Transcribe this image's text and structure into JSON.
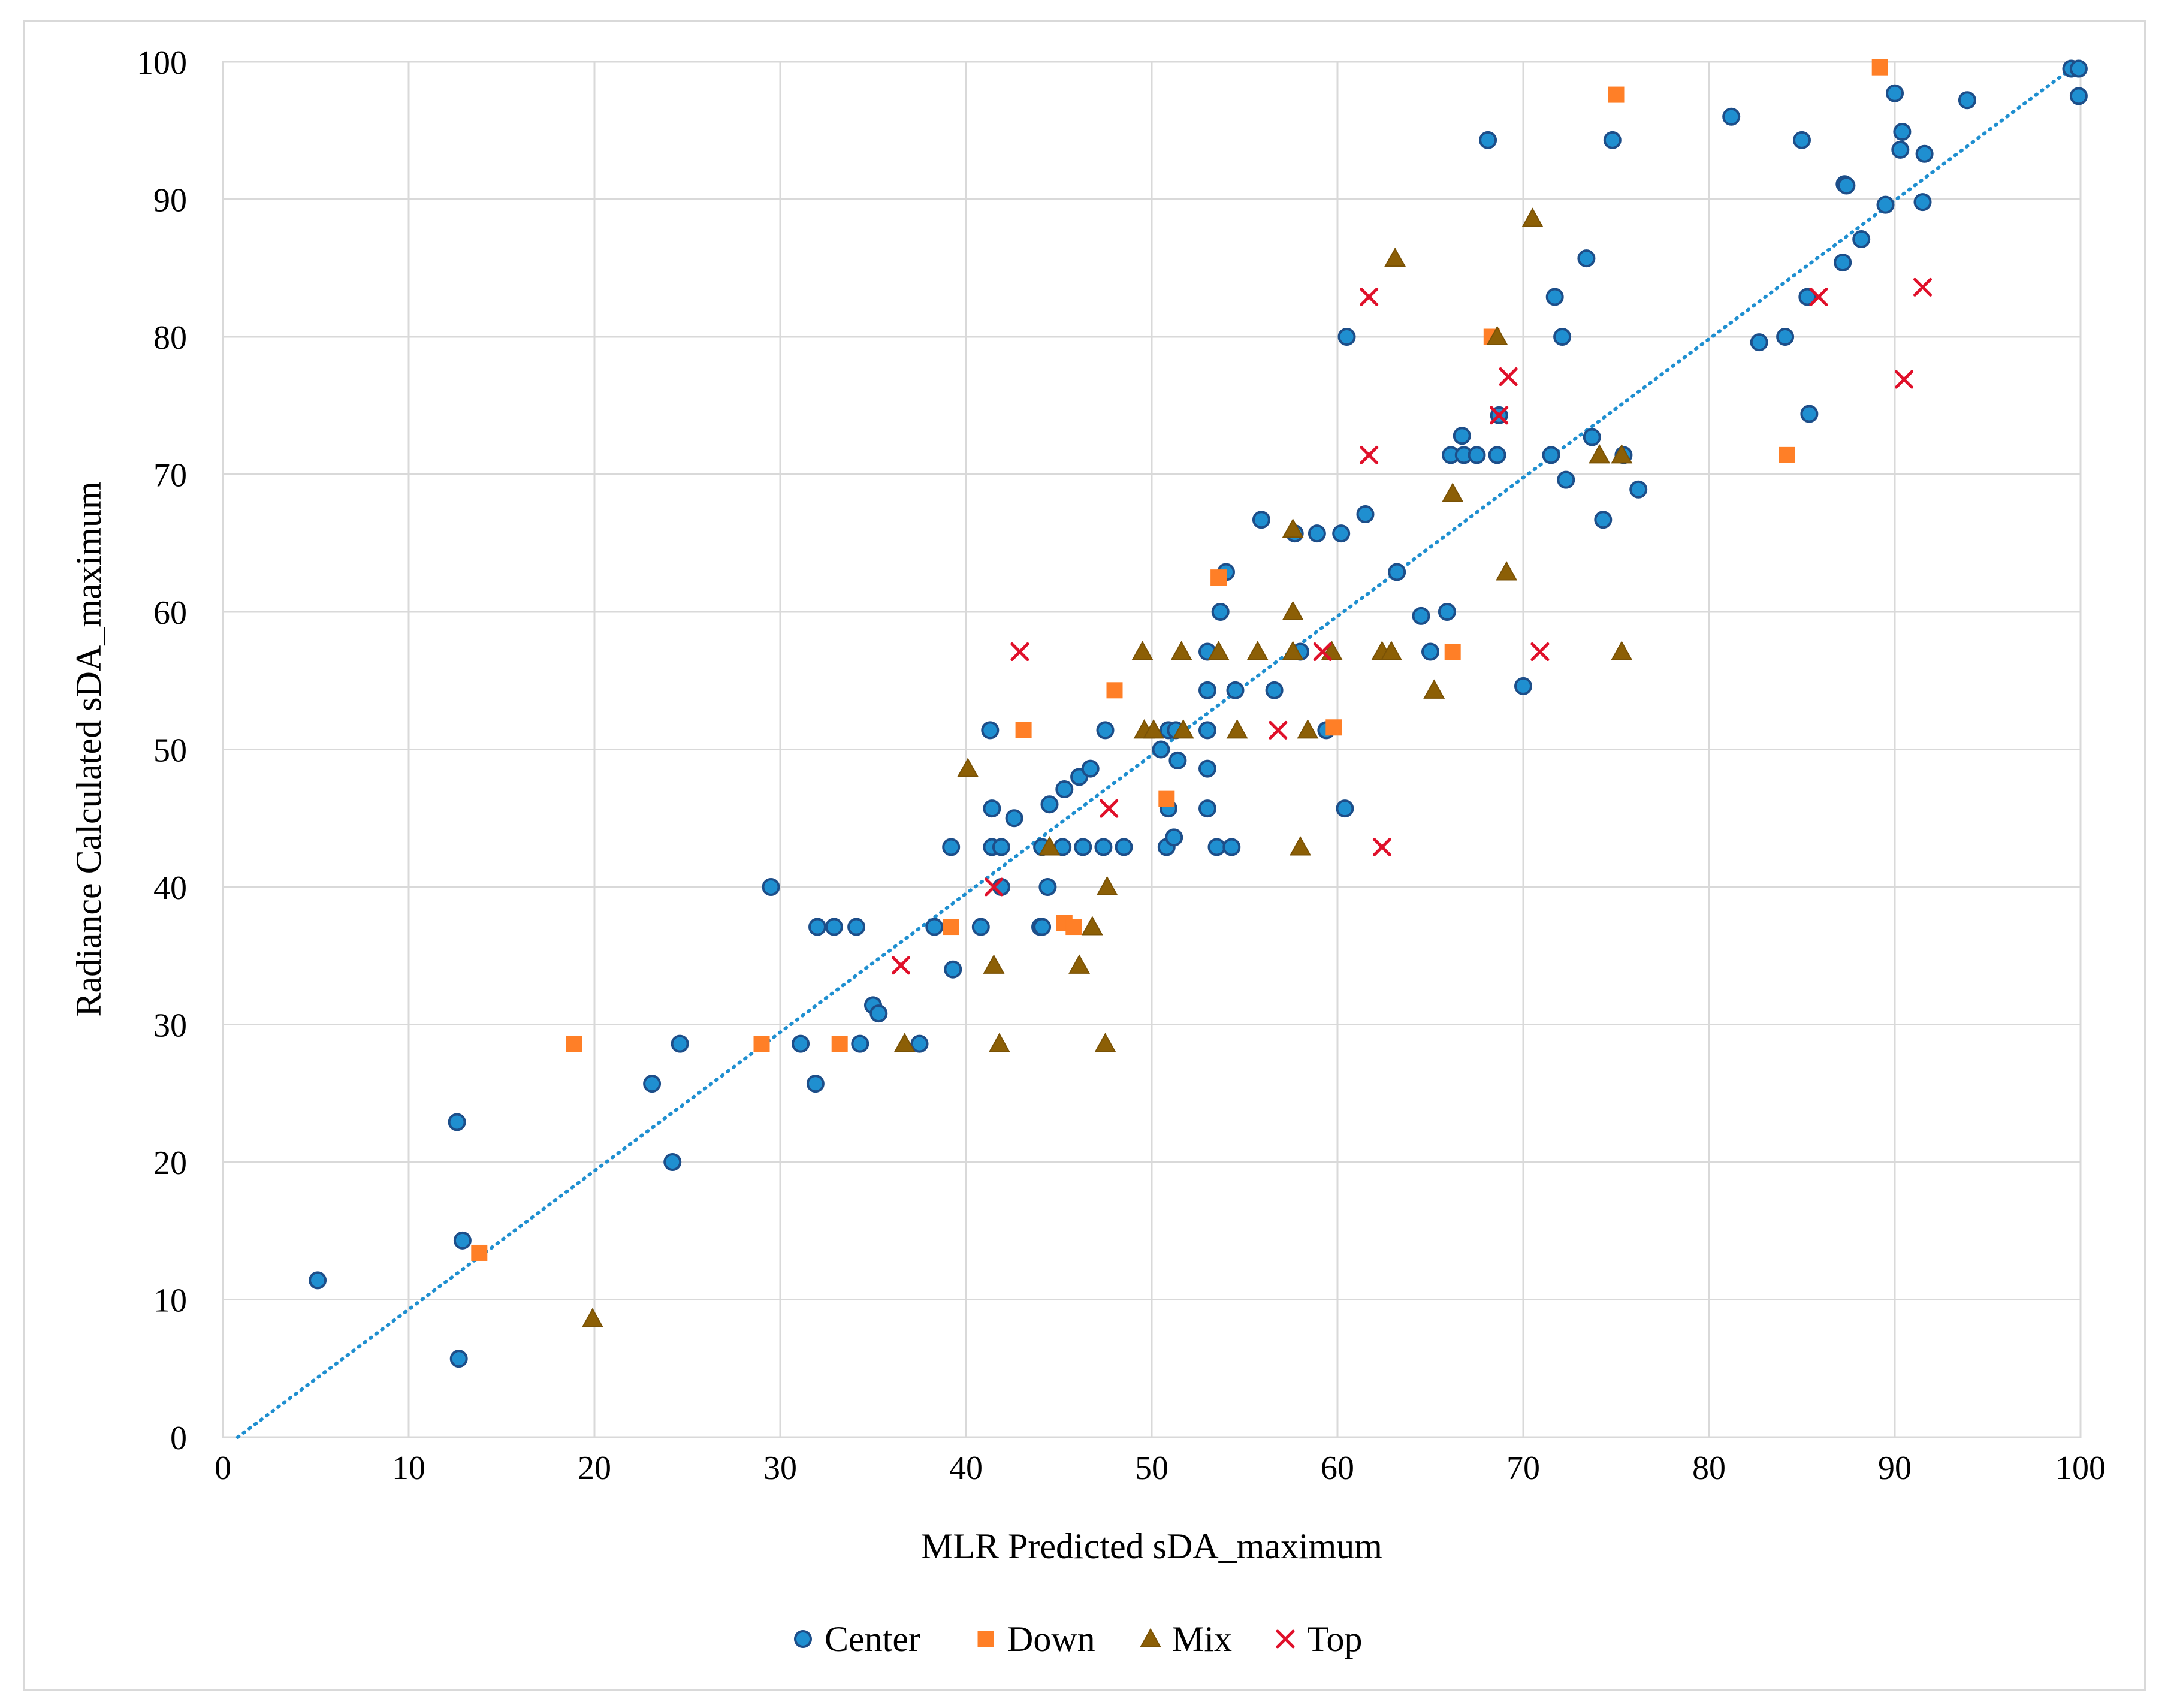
{
  "chart_data": {
    "type": "scatter",
    "title": "",
    "xlabel": "MLR Predicted sDA_maximum",
    "ylabel": "Radiance Calculated sDA_maximum",
    "xlim": [
      0,
      100
    ],
    "ylim": [
      0,
      100
    ],
    "x_ticks": [
      "0",
      "10",
      "20",
      "30",
      "40",
      "50",
      "60",
      "70",
      "80",
      "90",
      "100"
    ],
    "y_ticks": [
      "0",
      "10",
      "20",
      "30",
      "40",
      "50",
      "60",
      "70",
      "80",
      "90",
      "100"
    ],
    "grid": true,
    "legend_position": "bottom",
    "trendline": {
      "type": "linear",
      "style": "dotted",
      "color": "#1f8fd0",
      "from": [
        0.8,
        0
      ],
      "to": [
        100,
        100
      ]
    },
    "series": [
      {
        "name": "Center",
        "marker": "circle",
        "color": "#1f8fd0",
        "edge": "#1d4e89",
        "points": [
          [
            5.1,
            11.4
          ],
          [
            12.6,
            22.9
          ],
          [
            12.9,
            14.3
          ],
          [
            12.7,
            5.7
          ],
          [
            23.1,
            25.7
          ],
          [
            24.2,
            20
          ],
          [
            24.6,
            28.6
          ],
          [
            29.5,
            40
          ],
          [
            31.1,
            28.6
          ],
          [
            31.9,
            25.7
          ],
          [
            32,
            37.1
          ],
          [
            32.9,
            37.1
          ],
          [
            34.1,
            37.1
          ],
          [
            34.3,
            28.6
          ],
          [
            35,
            31.4
          ],
          [
            35.3,
            30.8
          ],
          [
            37.5,
            28.6
          ],
          [
            38.3,
            37.1
          ],
          [
            39.2,
            42.9
          ],
          [
            39.3,
            34
          ],
          [
            40.8,
            37.1
          ],
          [
            41.3,
            51.4
          ],
          [
            41.4,
            45.7
          ],
          [
            41.4,
            42.9
          ],
          [
            41.9,
            42.9
          ],
          [
            41.9,
            40
          ],
          [
            42.6,
            45
          ],
          [
            44,
            37.1
          ],
          [
            44.1,
            37.1
          ],
          [
            44.1,
            42.9
          ],
          [
            44.4,
            40
          ],
          [
            44.5,
            46
          ],
          [
            45.2,
            42.9
          ],
          [
            45.3,
            47.1
          ],
          [
            46.1,
            48
          ],
          [
            46.3,
            42.9
          ],
          [
            46.7,
            48.6
          ],
          [
            47.4,
            42.9
          ],
          [
            47.5,
            51.4
          ],
          [
            48.5,
            42.9
          ],
          [
            50.5,
            50
          ],
          [
            50.8,
            42.9
          ],
          [
            50.9,
            45.7
          ],
          [
            50.9,
            51.4
          ],
          [
            51.2,
            43.6
          ],
          [
            51.3,
            51.4
          ],
          [
            51.4,
            49.2
          ],
          [
            53,
            57.1
          ],
          [
            53,
            54.3
          ],
          [
            53,
            51.4
          ],
          [
            53,
            48.6
          ],
          [
            53,
            45.7
          ],
          [
            53.5,
            42.9
          ],
          [
            53.7,
            60
          ],
          [
            54,
            62.9
          ],
          [
            54.3,
            42.9
          ],
          [
            54.5,
            54.3
          ],
          [
            55.9,
            66.7
          ],
          [
            56.6,
            54.3
          ],
          [
            57.7,
            65.7
          ],
          [
            58,
            57.1
          ],
          [
            58.9,
            65.7
          ],
          [
            59.4,
            51.4
          ],
          [
            60.2,
            65.7
          ],
          [
            60.4,
            45.7
          ],
          [
            60.5,
            80
          ],
          [
            61.5,
            67.1
          ],
          [
            63.2,
            62.9
          ],
          [
            64.5,
            59.7
          ],
          [
            65,
            57.1
          ],
          [
            65.9,
            60
          ],
          [
            66.1,
            71.4
          ],
          [
            66.7,
            72.8
          ],
          [
            66.8,
            71.4
          ],
          [
            67.5,
            71.4
          ],
          [
            68.1,
            94.3
          ],
          [
            68.6,
            71.4
          ],
          [
            68.7,
            74.3
          ],
          [
            70,
            54.6
          ],
          [
            71.5,
            71.4
          ],
          [
            71.7,
            82.9
          ],
          [
            72.1,
            80
          ],
          [
            72.3,
            69.6
          ],
          [
            73.4,
            85.7
          ],
          [
            73.7,
            72.7
          ],
          [
            74.3,
            66.7
          ],
          [
            74.8,
            94.3
          ],
          [
            75.4,
            71.4
          ],
          [
            76.2,
            68.9
          ],
          [
            81.2,
            96
          ],
          [
            82.7,
            79.6
          ],
          [
            84.1,
            80
          ],
          [
            85,
            94.3
          ],
          [
            85.3,
            82.9
          ],
          [
            85.4,
            74.4
          ],
          [
            87.2,
            85.4
          ],
          [
            87.3,
            91.1
          ],
          [
            87.4,
            91
          ],
          [
            88.2,
            87.1
          ],
          [
            89.5,
            89.6
          ],
          [
            90,
            97.7
          ],
          [
            90.3,
            93.6
          ],
          [
            90.4,
            94.9
          ],
          [
            91.5,
            89.8
          ],
          [
            91.6,
            93.3
          ],
          [
            93.9,
            97.2
          ],
          [
            99.5,
            99.5
          ],
          [
            99.9,
            99.5
          ],
          [
            99.9,
            97.5
          ]
        ]
      },
      {
        "name": "Down",
        "marker": "square",
        "color": "#ff7f27",
        "edge": "#ff7f27",
        "points": [
          [
            13.8,
            13.4
          ],
          [
            18.9,
            28.6
          ],
          [
            29,
            28.6
          ],
          [
            33.2,
            28.6
          ],
          [
            39.2,
            37.1
          ],
          [
            43.1,
            51.4
          ],
          [
            45.3,
            37.4
          ],
          [
            45.8,
            37.1
          ],
          [
            48,
            54.3
          ],
          [
            50.8,
            46.4
          ],
          [
            53.6,
            62.5
          ],
          [
            59.8,
            51.6
          ],
          [
            66.2,
            57.1
          ],
          [
            68.3,
            80
          ],
          [
            75,
            97.6
          ],
          [
            84.2,
            71.4
          ],
          [
            89.2,
            99.6
          ]
        ]
      },
      {
        "name": "Mix",
        "marker": "triangle",
        "color": "#8c5f06",
        "edge": "#7a5205",
        "points": [
          [
            19.9,
            8.6
          ],
          [
            36.7,
            28.6
          ],
          [
            40.1,
            48.6
          ],
          [
            41.5,
            34.3
          ],
          [
            41.8,
            28.6
          ],
          [
            44.5,
            42.9
          ],
          [
            46.1,
            34.3
          ],
          [
            46.8,
            37.1
          ],
          [
            47.5,
            28.6
          ],
          [
            47.6,
            40
          ],
          [
            49.5,
            57.1
          ],
          [
            49.6,
            51.4
          ],
          [
            50.1,
            51.4
          ],
          [
            51.6,
            57.1
          ],
          [
            51.7,
            51.4
          ],
          [
            53.6,
            57.1
          ],
          [
            54.6,
            51.4
          ],
          [
            55.7,
            57.1
          ],
          [
            57.6,
            66
          ],
          [
            57.6,
            57.1
          ],
          [
            57.6,
            60
          ],
          [
            58,
            42.9
          ],
          [
            58.4,
            51.4
          ],
          [
            59.7,
            57.1
          ],
          [
            62.4,
            57.1
          ],
          [
            62.9,
            57.1
          ],
          [
            63.1,
            85.7
          ],
          [
            65.2,
            54.3
          ],
          [
            66.2,
            68.6
          ],
          [
            68.6,
            80
          ],
          [
            69.1,
            62.9
          ],
          [
            70.5,
            88.6
          ],
          [
            74.1,
            71.4
          ],
          [
            75.3,
            57.1
          ],
          [
            75.3,
            71.4
          ]
        ]
      },
      {
        "name": "Top",
        "marker": "x",
        "color": "#e0102a",
        "edge": "#e0102a",
        "points": [
          [
            36.5,
            34.3
          ],
          [
            41.5,
            40
          ],
          [
            42.9,
            57.1
          ],
          [
            47.7,
            45.7
          ],
          [
            56.8,
            51.4
          ],
          [
            59.2,
            57.1
          ],
          [
            61.7,
            82.9
          ],
          [
            61.7,
            71.4
          ],
          [
            62.4,
            42.9
          ],
          [
            68.7,
            74.3
          ],
          [
            69.2,
            77.1
          ],
          [
            70.9,
            57.1
          ],
          [
            85.9,
            82.9
          ],
          [
            90.5,
            76.9
          ],
          [
            91.5,
            83.6
          ]
        ]
      }
    ]
  }
}
